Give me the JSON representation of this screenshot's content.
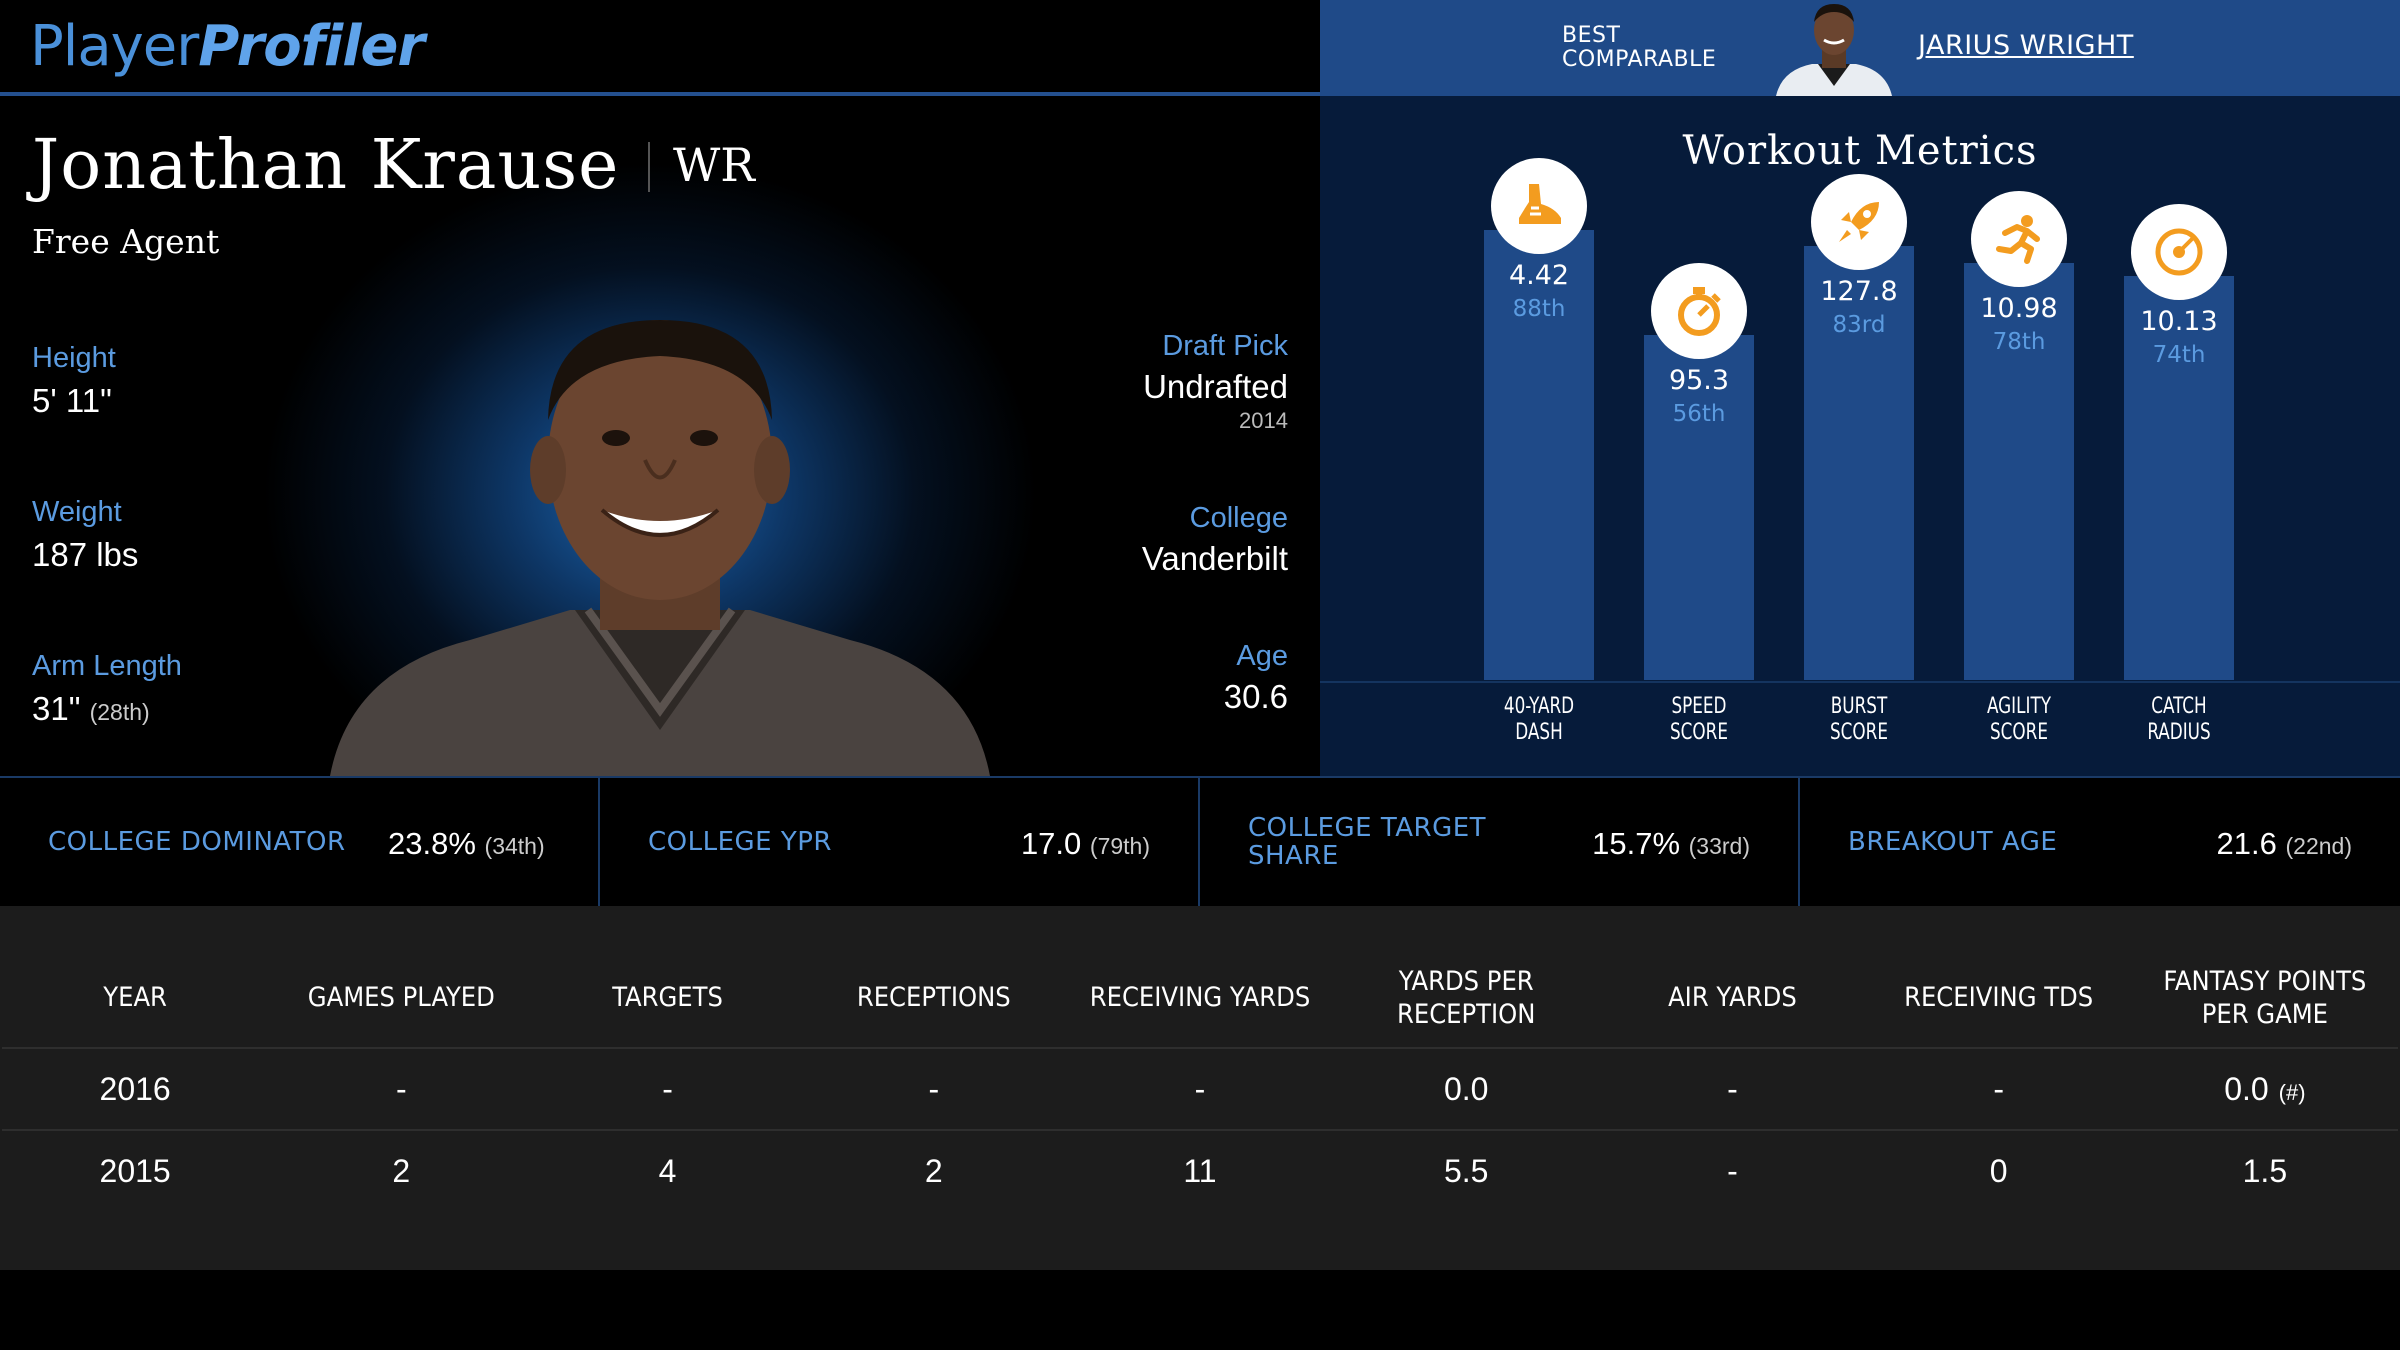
{
  "logo": {
    "part1": "Player",
    "part2": "Profiler"
  },
  "comparable": {
    "label_line1": "BEST",
    "label_line2": "COMPARABLE",
    "name": "JARIUS WRIGHT"
  },
  "player": {
    "name": "Jonathan Krause",
    "position": "WR",
    "team": "Free Agent",
    "height_label": "Height",
    "height": "5' 11\"",
    "weight_label": "Weight",
    "weight": "187 lbs",
    "arm_label": "Arm Length",
    "arm": "31\"",
    "arm_rank": "(28th)",
    "draft_label": "Draft Pick",
    "draft": "Undrafted",
    "draft_year": "2014",
    "college_label": "College",
    "college": "Vanderbilt",
    "age_label": "Age",
    "age": "30.6"
  },
  "workout": {
    "title": "Workout Metrics",
    "metrics": [
      {
        "label1": "40-YARD",
        "label2": "DASH",
        "value": "4.42",
        "pct": "88th",
        "percentile": 88,
        "icon": "shoe-icon"
      },
      {
        "label1": "SPEED",
        "label2": "SCORE",
        "value": "95.3",
        "pct": "56th",
        "percentile": 56,
        "icon": "stopwatch-icon"
      },
      {
        "label1": "BURST",
        "label2": "SCORE",
        "value": "127.8",
        "pct": "83rd",
        "percentile": 83,
        "icon": "rocket-icon"
      },
      {
        "label1": "AGILITY",
        "label2": "SCORE",
        "value": "10.98",
        "pct": "78th",
        "percentile": 78,
        "icon": "runner-icon"
      },
      {
        "label1": "CATCH",
        "label2": "RADIUS",
        "value": "10.13",
        "pct": "74th",
        "percentile": 74,
        "icon": "target-icon"
      }
    ]
  },
  "college_stats": [
    {
      "label1": "COLLEGE DOMINATOR",
      "label2": "",
      "value": "23.8%",
      "rank": "(34th)"
    },
    {
      "label1": "COLLEGE YPR",
      "label2": "",
      "value": "17.0",
      "rank": "(79th)"
    },
    {
      "label1": "COLLEGE TARGET",
      "label2": "SHARE",
      "value": "15.7%",
      "rank": "(33rd)"
    },
    {
      "label1": "BREAKOUT AGE",
      "label2": "",
      "value": "21.6",
      "rank": "(22nd)"
    }
  ],
  "table": {
    "headers": [
      "YEAR",
      "GAMES PLAYED",
      "TARGETS",
      "RECEPTIONS",
      "RECEIVING YARDS",
      "YARDS PER RECEPTION",
      "AIR YARDS",
      "RECEIVING TDS",
      "FANTASY POINTS PER GAME"
    ],
    "rows": [
      [
        "2016",
        "-",
        "-",
        "-",
        "-",
        "0.0",
        "-",
        "-",
        "0.0"
      ],
      [
        "2015",
        "2",
        "4",
        "2",
        "11",
        "5.5",
        "-",
        "0",
        "1.5"
      ]
    ],
    "hash_note": "(#)"
  },
  "colors": {
    "accent_blue": "#5b9be0",
    "bar_blue": "#1f4a88",
    "icon_orange": "#f39c1f",
    "panel_navy": "#061b3a"
  }
}
